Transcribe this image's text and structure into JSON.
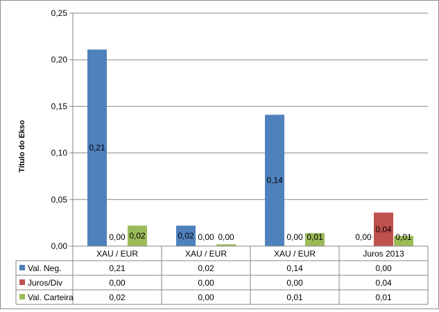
{
  "chart_data": {
    "type": "bar",
    "title": "",
    "xlabel": "",
    "ylabel": "Título do Ekso",
    "ylim": [
      0,
      0.25
    ],
    "yticks": [
      "0,00",
      "0,05",
      "0,10",
      "0,15",
      "0,20",
      "0,25"
    ],
    "grid": "horizontal",
    "legend": "data-table-below",
    "categories": [
      "XAU / EUR",
      "XAU / EUR",
      "XAU / EUR",
      "Juros 2013"
    ],
    "series": [
      {
        "name": "Val. Neg.",
        "color": "#4f81bd",
        "values": [
          0.211,
          0.022,
          0.141,
          0.0
        ],
        "labels": [
          "0,21",
          "0,02",
          "0,14",
          "0,00"
        ]
      },
      {
        "name": "Juros/Div",
        "color": "#c0504d",
        "values": [
          0.0,
          0.0,
          0.0,
          0.036
        ],
        "labels": [
          "0,00",
          "0,00",
          "0,00",
          "0,04"
        ]
      },
      {
        "name": "Val. Carteira",
        "color": "#9bbb59",
        "values": [
          0.022,
          0.002,
          0.014,
          0.011
        ],
        "labels": [
          "0,02",
          "0,00",
          "0,01",
          "0,01"
        ]
      }
    ]
  }
}
